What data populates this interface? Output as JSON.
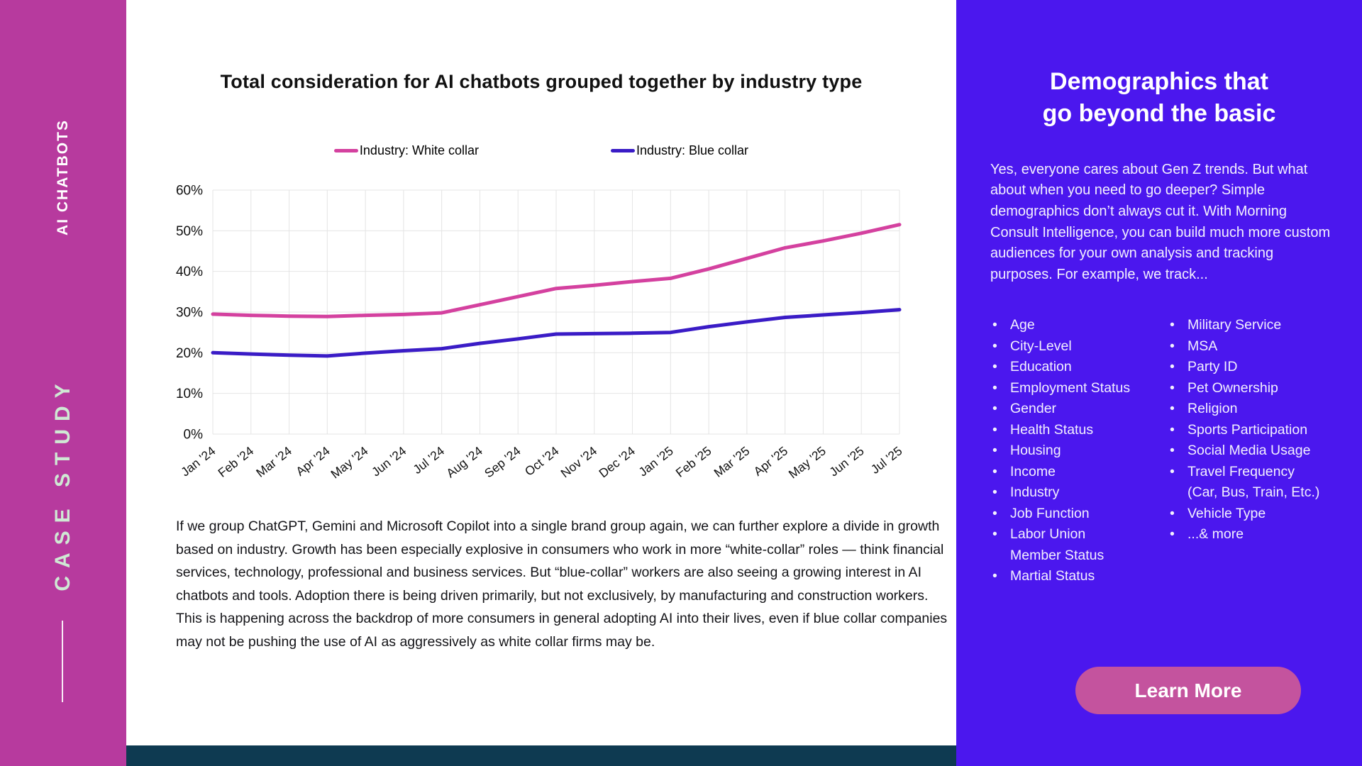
{
  "left_sidebar": {
    "top_label": "AI CHATBOTS",
    "bottom_label": "CASE STUDY"
  },
  "chart_data": {
    "type": "line",
    "title": "Total consideration for AI chatbots grouped together by industry type",
    "xlabel": "",
    "ylabel": "",
    "categories": [
      "Jan '24",
      "Feb '24",
      "Mar '24",
      "Apr '24",
      "May '24",
      "Jun '24",
      "Jul '24",
      "Aug '24",
      "Sep '24",
      "Oct '24",
      "Nov '24",
      "Dec '24",
      "Jan '25",
      "Feb '25",
      "Mar '25",
      "Apr '25",
      "May '25",
      "Jun '25",
      "Jul '25"
    ],
    "series": [
      {
        "name": "Industry: White collar",
        "color": "#d4419f",
        "values": [
          29.5,
          29.2,
          29.0,
          28.9,
          29.2,
          29.4,
          29.8,
          31.8,
          33.8,
          35.8,
          36.6,
          37.5,
          38.3,
          40.6,
          43.2,
          45.8,
          47.5,
          49.4,
          51.5
        ]
      },
      {
        "name": "Industry: Blue collar",
        "color": "#3a1cc6",
        "values": [
          20.0,
          19.7,
          19.4,
          19.2,
          19.9,
          20.5,
          21.0,
          22.3,
          23.4,
          24.6,
          24.7,
          24.8,
          25.0,
          26.4,
          27.6,
          28.7,
          29.3,
          29.9,
          30.6
        ]
      }
    ],
    "ylim": [
      0,
      60
    ],
    "ytick_step": 10,
    "ytick_suffix": "%",
    "yticks": [
      "0%",
      "10%",
      "20%",
      "30%",
      "40%",
      "50%",
      "60%"
    ],
    "grid": true,
    "legend_position": "top"
  },
  "main": {
    "paragraph": "If we group ChatGPT, Gemini and Microsoft Copilot into a single brand group again, we can further explore a divide in growth based on industry. Growth has been especially explosive in consumers who work in more “white-collar” roles — think financial services, technology, professional and business services. But “blue-collar” workers are also seeing a growing interest in AI chatbots and tools. Adoption there is being driven primarily, but not exclusively, by manufacturing and construction workers. This is happening across the backdrop of more consumers in general adopting AI into their lives, even if blue collar companies may not be pushing the use of AI as aggressively as white collar firms may be."
  },
  "right_sidebar": {
    "heading_line1": "Demographics that",
    "heading_line2": "go beyond the basic",
    "paragraph": "Yes, everyone cares about Gen Z trends. But what about when you need to go deeper? Simple demographics don’t always cut it. With Morning Consult Intelligence, you can build much more custom audiences for your own analysis and tracking purposes. For example, we track...",
    "bullets_col1": [
      "Age",
      "City-Level",
      "Education",
      "Employment Status",
      "Gender",
      "Health Status",
      "Housing",
      "Income",
      "Industry",
      "Job Function",
      "Labor Union\nMember Status",
      "Martial Status"
    ],
    "bullets_col2": [
      "Military Service",
      "MSA",
      "Party ID",
      "Pet Ownership",
      "Religion",
      "Sports Participation",
      "Social Media Usage",
      "Travel Frequency\n(Car, Bus, Train, Etc.)",
      "Vehicle Type",
      "...& more"
    ],
    "button_label": "Learn More"
  },
  "colors": {
    "left_sidebar_bg": "#b73a9e",
    "case_study_text": "#cfe9d4",
    "right_sidebar_bg": "#4b17ee",
    "button_bg": "#c4539e",
    "white_collar_line": "#d4419f",
    "blue_collar_line": "#3a1cc6",
    "bottom_bar": "#0e3a51",
    "gridline": "#e4e4e4"
  }
}
